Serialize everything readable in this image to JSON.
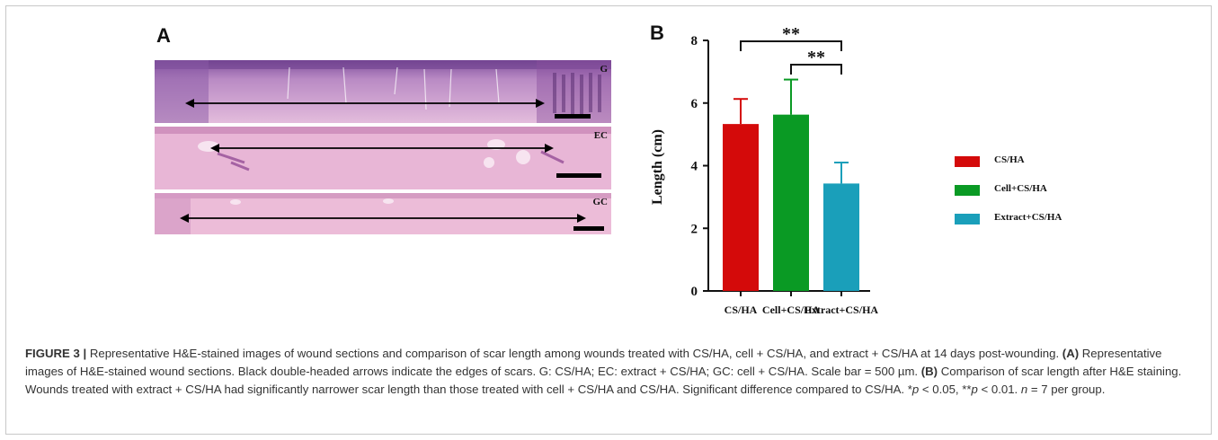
{
  "figure": {
    "panel_a_label": "A",
    "panel_b_label": "B"
  },
  "tissue_panel": {
    "strips": [
      {
        "label": "G"
      },
      {
        "label": "EC"
      },
      {
        "label": "GC"
      }
    ]
  },
  "chart_data": {
    "type": "bar",
    "categories": [
      "CS/HA",
      "Cell+CS/HA",
      "Extract+CS/HA"
    ],
    "values": [
      5.33,
      5.63,
      3.43
    ],
    "errors": [
      0.8,
      1.12,
      0.67
    ],
    "colors": [
      "#d40a0a",
      "#0a9a24",
      "#1a9fba"
    ],
    "xlabel": "",
    "ylabel": "Length (cm)",
    "ylim": [
      0,
      8
    ],
    "yticks": [
      0,
      2,
      4,
      6,
      8
    ],
    "grid": false,
    "legend": {
      "placement": "right",
      "entries": [
        "CS/HA",
        "Cell+CS/HA",
        "Extract+CS/HA"
      ]
    },
    "significance": [
      {
        "from": "CS/HA",
        "to": "Extract+CS/HA",
        "label": "**"
      },
      {
        "from": "Cell+CS/HA",
        "to": "Extract+CS/HA",
        "label": "**"
      }
    ]
  },
  "caption": {
    "figure_label": "FIGURE 3 |",
    "intro": " Representative H&E-stained images of wound sections and comparison of scar length among wounds treated with CS/HA, cell + CS/HA, and extract + CS/HA at 14 days post-wounding. ",
    "a_tag": "(A)",
    "a_text": " Representative images of H&E-stained wound sections. Black double-headed arrows indicate the edges of scars. G: CS/HA; EC: extract + CS/HA; GC: cell + CS/HA. Scale bar = 500 µm. ",
    "b_tag": "(B)",
    "b_text": " Comparison of scar length after H&E staining. Wounds treated with extract + CS/HA had significantly narrower scar length than those treated with cell + CS/HA and CS/HA. Significant difference compared to CS/HA. *",
    "p1": "p",
    "mid1": " < 0.05, **",
    "p2": "p",
    "mid2": " < 0.01. ",
    "n": "n",
    "end": " = 7 per group."
  }
}
